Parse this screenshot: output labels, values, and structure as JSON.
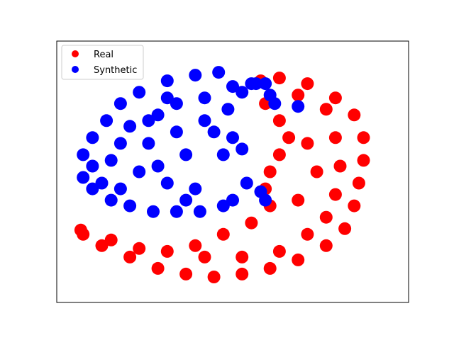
{
  "chart_data": {
    "type": "scatter",
    "title": "",
    "xlabel": "",
    "ylabel": "",
    "grid": false,
    "axes_ticks": false,
    "legend_placement": "upper-left",
    "series": [
      {
        "name": "Real",
        "color": "#ff0000",
        "points": [
          [
            -28,
            -22
          ],
          [
            -24,
            -26
          ],
          [
            -18,
            -30
          ],
          [
            -12,
            -34
          ],
          [
            -6,
            -36
          ],
          [
            0,
            -37
          ],
          [
            6,
            -36
          ],
          [
            12,
            -34
          ],
          [
            18,
            -31
          ],
          [
            24,
            -26
          ],
          [
            28,
            -20
          ],
          [
            30,
            -12
          ],
          [
            31,
            -4
          ],
          [
            32,
            4
          ],
          [
            32,
            12
          ],
          [
            30,
            20
          ],
          [
            26,
            26
          ],
          [
            20,
            31
          ],
          [
            14,
            33
          ],
          [
            10,
            32
          ],
          [
            11,
            24
          ],
          [
            14,
            18
          ],
          [
            16,
            12
          ],
          [
            14,
            6
          ],
          [
            12,
            0
          ],
          [
            11,
            -6
          ],
          [
            12,
            -12
          ],
          [
            8,
            -18
          ],
          [
            2,
            -22
          ],
          [
            -4,
            -26
          ],
          [
            -10,
            -28
          ],
          [
            -16,
            -27
          ],
          [
            -22,
            -24
          ],
          [
            -2,
            -30
          ],
          [
            6,
            -30
          ],
          [
            14,
            -28
          ],
          [
            20,
            -22
          ],
          [
            24,
            -16
          ],
          [
            26,
            -8
          ],
          [
            27,
            2
          ],
          [
            26,
            12
          ],
          [
            24,
            22
          ],
          [
            18,
            27
          ],
          [
            20,
            10
          ],
          [
            22,
            0
          ],
          [
            18,
            -10
          ],
          [
            -28.5,
            -20.5
          ]
        ]
      },
      {
        "name": "Synthetic",
        "color": "#0000ff",
        "points": [
          [
            -28,
            6
          ],
          [
            -28,
            -2
          ],
          [
            -26,
            12
          ],
          [
            -26,
            -6
          ],
          [
            -23,
            18
          ],
          [
            -22,
            -10
          ],
          [
            -20,
            24
          ],
          [
            -18,
            -12
          ],
          [
            -16,
            28
          ],
          [
            -14,
            10
          ],
          [
            -13,
            -14
          ],
          [
            -12,
            20
          ],
          [
            -10,
            32
          ],
          [
            -8,
            24
          ],
          [
            -8,
            -14
          ],
          [
            -6,
            6
          ],
          [
            -4,
            34
          ],
          [
            -2,
            26
          ],
          [
            -3,
            -14
          ],
          [
            0,
            14
          ],
          [
            1,
            35
          ],
          [
            2,
            -12
          ],
          [
            3,
            22
          ],
          [
            4,
            -10
          ],
          [
            4,
            30
          ],
          [
            6,
            8
          ],
          [
            -20,
            10
          ],
          [
            -16,
            0
          ],
          [
            -12,
            2
          ],
          [
            -10,
            -4
          ],
          [
            -4,
            -6
          ],
          [
            -8,
            14
          ],
          [
            -18,
            16
          ],
          [
            -22,
            4
          ],
          [
            -14,
            18
          ],
          [
            6,
            28
          ],
          [
            8,
            31
          ],
          [
            11,
            -10
          ],
          [
            -24,
            -4
          ],
          [
            -6,
            -10
          ],
          [
            2,
            6
          ],
          [
            10,
            -7
          ],
          [
            -20,
            -6
          ],
          [
            -10,
            26
          ],
          [
            -2,
            18
          ],
          [
            4,
            12
          ],
          [
            7,
            -4
          ],
          [
            -26,
            2
          ],
          [
            9,
            31
          ],
          [
            11,
            31
          ],
          [
            12,
            27
          ],
          [
            13,
            24
          ],
          [
            18,
            23
          ]
        ]
      }
    ],
    "xlim": [
      -30,
      38
    ],
    "ylim": [
      -40,
      40
    ]
  }
}
